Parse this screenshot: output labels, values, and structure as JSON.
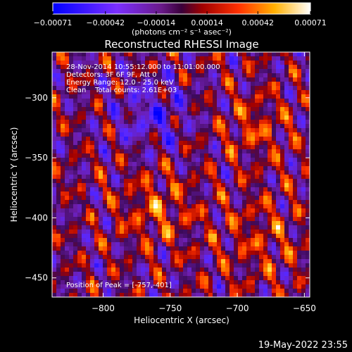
{
  "chart_data": {
    "type": "heatmap",
    "title": "Reconstructed RHESSI Image",
    "xlabel": "Heliocentric X (arcsec)",
    "ylabel": "Heliocentric Y (arcsec)",
    "xlim": [
      -838,
      -646
    ],
    "ylim": [
      -466,
      -262
    ],
    "x_ticks": [
      {
        "value": -800,
        "label": "−800"
      },
      {
        "value": -750,
        "label": "−750"
      },
      {
        "value": -700,
        "label": "−700"
      },
      {
        "value": -650,
        "label": "−650"
      }
    ],
    "y_ticks": [
      {
        "value": -300,
        "label": "−300"
      },
      {
        "value": -350,
        "label": "−350"
      },
      {
        "value": -400,
        "label": "−400"
      },
      {
        "value": -450,
        "label": "−450"
      }
    ],
    "colorbar": {
      "range": [
        -0.00071,
        0.00071
      ],
      "ticks": [
        {
          "value": -0.00071,
          "label": "−0.00071"
        },
        {
          "value": -0.00042,
          "label": "−0.00042"
        },
        {
          "value": -0.00014,
          "label": "−0.00014"
        },
        {
          "value": 0.00014,
          "label": "0.00014"
        },
        {
          "value": 0.00042,
          "label": "0.00042"
        },
        {
          "value": 0.00071,
          "label": "0.00071"
        }
      ],
      "unit_label": "(photons cm⁻² s⁻¹ asec⁻²)",
      "colors": [
        "#0000ff",
        "#5a3cff",
        "#8a2be2",
        "#800000",
        "#ff0000",
        "#ff8c00",
        "#ffd700",
        "#ffffff"
      ]
    },
    "annotations": [
      "28-Nov-2014 10:55:12.000 to 11:01:00.000",
      "Detectors: 3F 6F 9F, Att 0",
      "Energy Range: 12.0 - 25.0 keV",
      "Clean    Total counts: 2.61E+03"
    ],
    "peak_label": "Position of Peak = [-757,-401]",
    "peak": {
      "x": -757,
      "y": -401
    }
  },
  "footer": {
    "timestamp": "19-May-2022 23:55"
  }
}
